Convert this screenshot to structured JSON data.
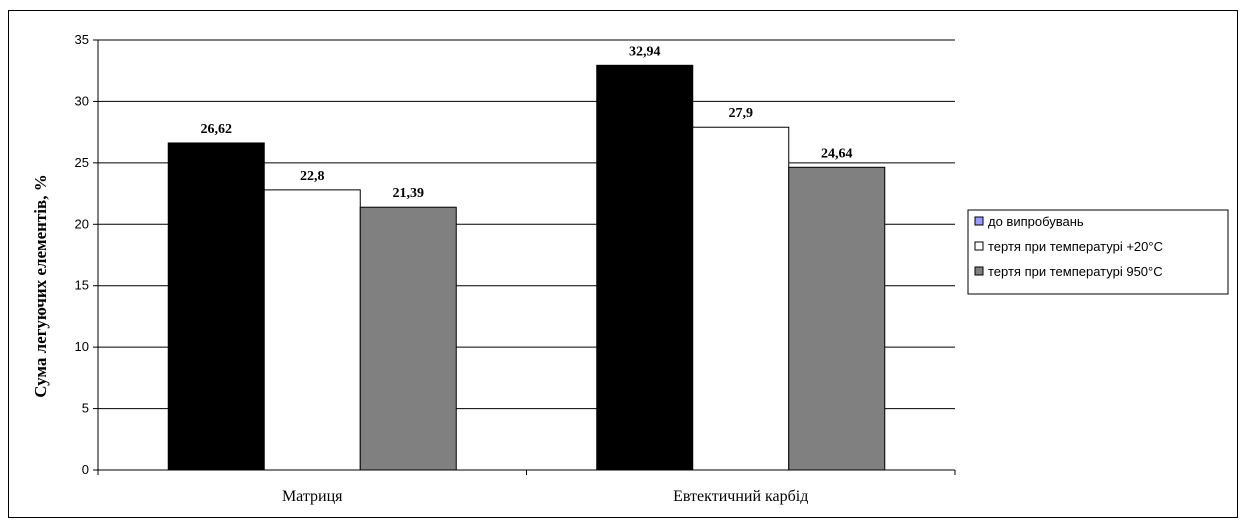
{
  "chart_data": {
    "type": "bar",
    "title": "",
    "xlabel": "",
    "ylabel": "Сума легуючих елементів, %",
    "ylim": [
      0,
      35
    ],
    "yticks": [
      0,
      5,
      10,
      15,
      20,
      25,
      30,
      35
    ],
    "grid": true,
    "legend_position": "right",
    "categories": [
      "Матриця",
      "Евтектичний карбід"
    ],
    "series": [
      {
        "name": "до випробувань",
        "values": [
          26.62,
          32.94
        ],
        "labels": [
          "26,62",
          "32,94"
        ],
        "color": "#000000",
        "legend_color": "#9999ff"
      },
      {
        "name": "тертя  при температурі +20°С",
        "values": [
          22.8,
          27.9
        ],
        "labels": [
          "22,8",
          "27,9"
        ],
        "color": "#ffffff",
        "legend_color": "#ffffff"
      },
      {
        "name": "тертя  при температурі 950°С",
        "values": [
          21.39,
          24.64
        ],
        "labels": [
          "21,39",
          "24,64"
        ],
        "color": "#808080",
        "legend_color": "#808080"
      }
    ]
  }
}
